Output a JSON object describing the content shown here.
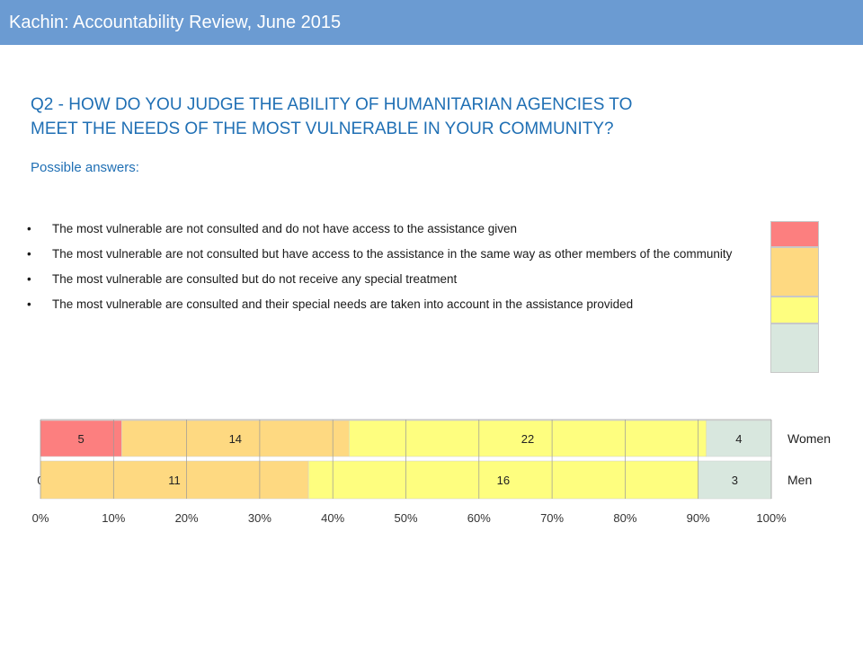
{
  "header": {
    "title": "Kachin: Accountability Review, June 2015"
  },
  "question": {
    "line1": "Q2 - HOW DO YOU JUDGE THE ABILITY OF HUMANITARIAN AGENCIES TO",
    "line2": "MEET THE NEEDS OF THE MOST VULNERABLE IN YOUR COMMUNITY?"
  },
  "possible_answers_label": "Possible answers:",
  "answers": [
    {
      "text": "The most vulnerable are not consulted and do not have access to the assistance given",
      "color": "#fc7f7f"
    },
    {
      "text": "The most vulnerable are not consulted but have access to the assistance in the same way as other members of the community",
      "color": "#fed981"
    },
    {
      "text": "The most vulnerable are consulted but do not receive any special treatment",
      "color": "#fefe7f"
    },
    {
      "text": "The most vulnerable are consulted and their special needs are taken into account in the assistance provided",
      "color": "#d8e7de"
    }
  ],
  "chart_data": {
    "type": "bar",
    "orientation": "horizontal",
    "stacked": "percent",
    "categories": [
      "Women",
      "Men"
    ],
    "series": [
      {
        "values": [
          5,
          0
        ],
        "color": "#fc7f7f"
      },
      {
        "values": [
          14,
          11
        ],
        "color": "#fed981"
      },
      {
        "values": [
          22,
          16
        ],
        "color": "#fefe7f"
      },
      {
        "values": [
          4,
          3
        ],
        "color": "#d8e7de"
      }
    ],
    "x_ticks": [
      "0%",
      "10%",
      "20%",
      "30%",
      "40%",
      "50%",
      "60%",
      "70%",
      "80%",
      "90%",
      "100%"
    ],
    "xlim": [
      0,
      100
    ],
    "grid": true,
    "legend": "none"
  }
}
